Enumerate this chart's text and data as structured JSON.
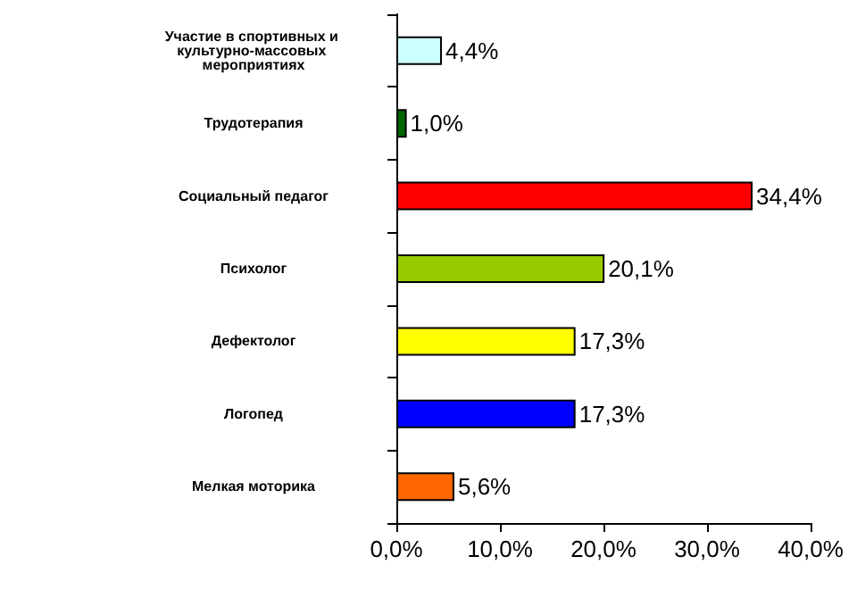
{
  "chart_data": {
    "type": "bar",
    "orientation": "horizontal",
    "categories": [
      "Участие в спортивных и культурно-массовых мероприятиях",
      "Трудотерапия",
      "Социальный педагог",
      "Психолог",
      "Дефектолог",
      "Логопед",
      "Мелкая моторика"
    ],
    "values": [
      4.4,
      1.0,
      34.4,
      20.1,
      17.3,
      17.3,
      5.6
    ],
    "colors": [
      "#ccffff",
      "#006600",
      "#ff0000",
      "#99cc00",
      "#ffff00",
      "#0000ff",
      "#ff6600"
    ],
    "value_labels": [
      "4,4%",
      "1,0%",
      "34,4%",
      "20,1%",
      "17,3%",
      "17,3%",
      "5,6%"
    ],
    "xlim": [
      0,
      40
    ],
    "xticks": [
      {
        "value": 0,
        "label": "0,0%"
      },
      {
        "value": 10,
        "label": "10,0%"
      },
      {
        "value": 20,
        "label": "20,0%"
      },
      {
        "value": 30,
        "label": "30,0%"
      },
      {
        "value": 40,
        "label": "40,0%"
      }
    ],
    "grid": false
  }
}
